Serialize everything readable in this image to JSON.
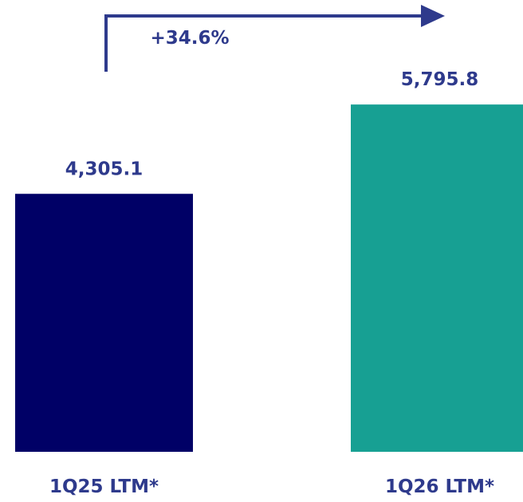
{
  "chart_data": {
    "type": "bar",
    "categories": [
      "1Q25 LTM*",
      "1Q26 LTM*"
    ],
    "values": [
      4305.1,
      5795.8
    ],
    "value_labels": [
      "4,305.1",
      "5,795.8"
    ],
    "bar_colors": [
      "#000066",
      "#17A093"
    ],
    "label_color": "#2E3A8C",
    "growth_label": "+34.6%",
    "title": "",
    "xlabel": "",
    "ylabel": "",
    "grid": false
  }
}
